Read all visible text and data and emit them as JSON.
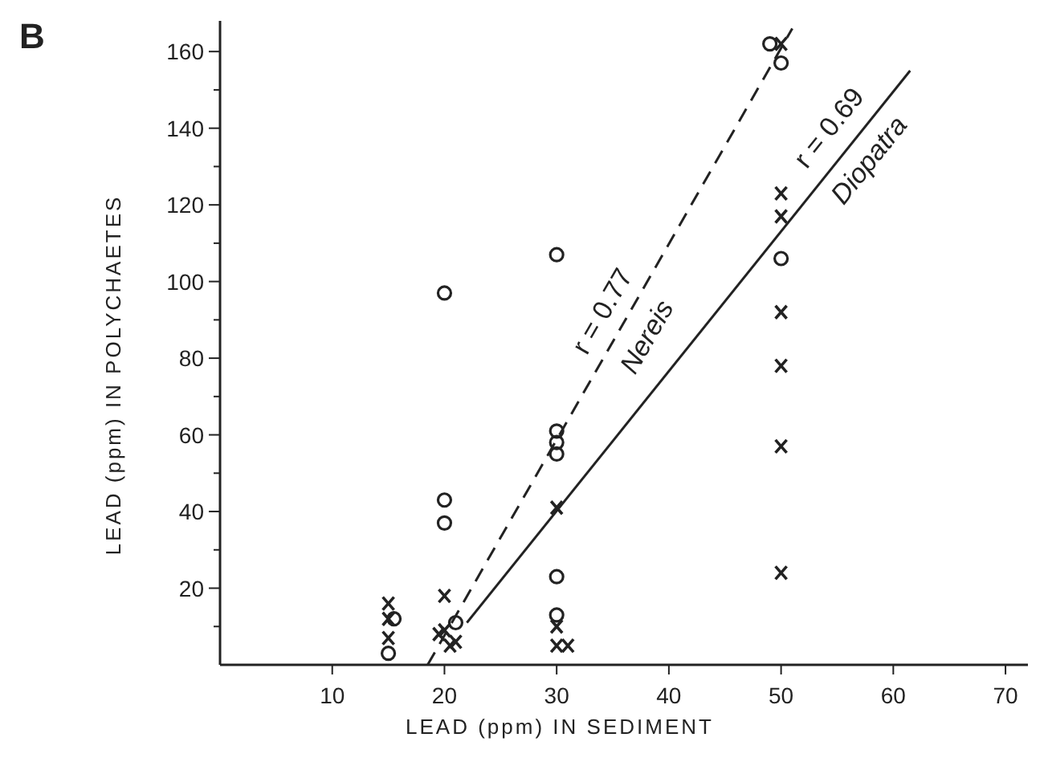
{
  "chart_data": {
    "type": "scatter",
    "title": "B",
    "xlabel": "LEAD (ppm) IN SEDIMENT",
    "ylabel": "LEAD (ppm) IN POLYCHAETES",
    "xlim": [
      0,
      72
    ],
    "ylim": [
      0,
      168
    ],
    "xticks": [
      10,
      20,
      30,
      40,
      50,
      60,
      70
    ],
    "yticks": [
      {
        "value": 10,
        "label": null
      },
      20,
      {
        "value": 30,
        "label": null
      },
      40,
      {
        "value": 50,
        "label": null
      },
      60,
      {
        "value": 70,
        "label": null
      },
      80,
      {
        "value": 90,
        "label": null
      },
      100,
      {
        "value": 110,
        "label": null
      },
      120,
      {
        "value": 130,
        "label": null
      },
      140,
      {
        "value": 150,
        "label": null
      },
      160
    ],
    "grid": false,
    "series": [
      {
        "marker": "circle",
        "color": "#222222",
        "x": [
          15,
          15.5,
          20,
          20,
          20,
          21,
          30,
          30,
          30,
          30,
          30,
          30,
          49,
          50,
          50
        ],
        "values": [
          3,
          12,
          97,
          43,
          37,
          11,
          107,
          61,
          58,
          55,
          23,
          13,
          162,
          157,
          106
        ]
      },
      {
        "marker": "cross",
        "color": "#222222",
        "x": [
          15,
          15,
          15,
          20,
          19.5,
          20,
          20.5,
          21,
          30,
          30,
          30,
          31,
          50,
          50,
          50,
          50,
          50,
          50,
          50
        ],
        "values": [
          12,
          16,
          7,
          18,
          8,
          9,
          5,
          6,
          41,
          10,
          5,
          5,
          162,
          123,
          117,
          92,
          78,
          57,
          24
        ]
      },
      {
        "type": "line",
        "name": "Nereis",
        "line_style": "dashed",
        "marker": "none",
        "color": "#222222",
        "x": [
          18.5,
          51
        ],
        "values": [
          0,
          166
        ]
      },
      {
        "type": "line",
        "name": "Diopatra",
        "line_style": "solid",
        "marker": "none",
        "color": "#222222",
        "x": [
          22,
          61.5
        ],
        "values": [
          11,
          155
        ]
      }
    ],
    "annotations": [
      {
        "text": "r = 0.77",
        "x": 36,
        "y": 89
      },
      {
        "text": "r = 0.69",
        "x": 56,
        "y": 136
      }
    ]
  }
}
